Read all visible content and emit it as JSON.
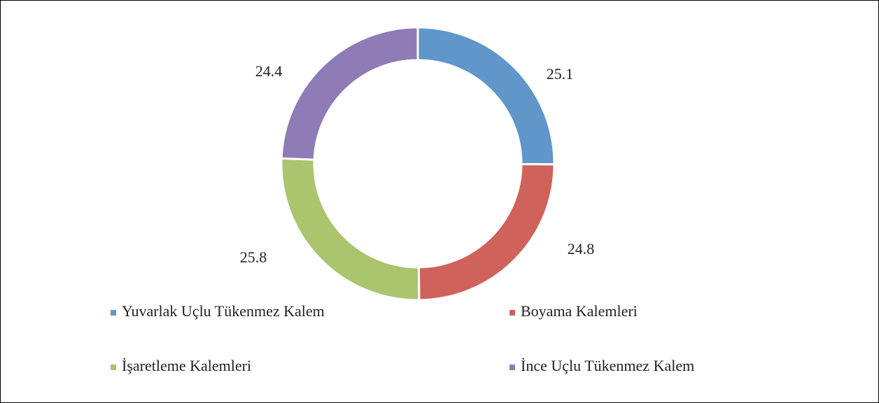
{
  "chart_data": {
    "type": "donut",
    "categories": [
      "Yuvarlak Uçlu Tükenmez Kalem",
      "Boyama Kalemleri",
      "İşaretleme Kalemleri",
      "İnce Uçlu Tükenmez Kalem"
    ],
    "values": [
      25.1,
      24.8,
      25.8,
      24.4
    ],
    "colors": [
      "#6096c9",
      "#d0625c",
      "#aac56d",
      "#8f7bb5"
    ],
    "legend": "bottom"
  }
}
